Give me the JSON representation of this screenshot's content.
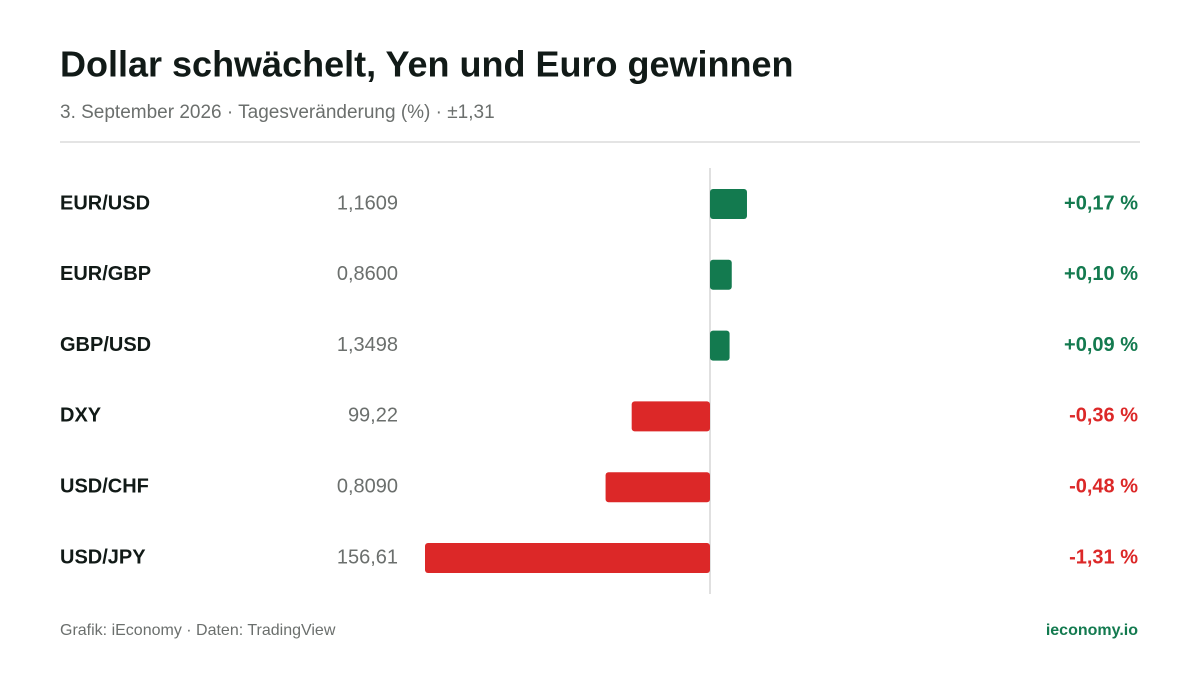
{
  "chart_data": {
    "type": "bar",
    "orientation": "horizontal",
    "title": "Dollar schwächelt, Yen und Euro gewinnen",
    "subtitle": "3. September 2026 · Tagesveränderung (%) · ±1,31",
    "categories": [
      "EUR/USD",
      "EUR/GBP",
      "GBP/USD",
      "DXY",
      "USD/CHF",
      "USD/JPY"
    ],
    "prices": [
      "1,1609",
      "0,8600",
      "1,3498",
      "99,22",
      "0,8090",
      "156,61"
    ],
    "values": [
      0.17,
      0.1,
      0.09,
      -0.36,
      -0.48,
      -1.31
    ],
    "value_labels": [
      "+0,17 %",
      "+0,10 %",
      "+0,09 %",
      "-0,36 %",
      "-0,48 %",
      "-1,31 %"
    ],
    "xlim": [
      -1.31,
      1.31
    ],
    "positive_color": "#137a4f",
    "negative_color": "#dc2828",
    "source": "Grafik: iEconomy · Daten: TradingView",
    "brand": "ieconomy.io"
  }
}
